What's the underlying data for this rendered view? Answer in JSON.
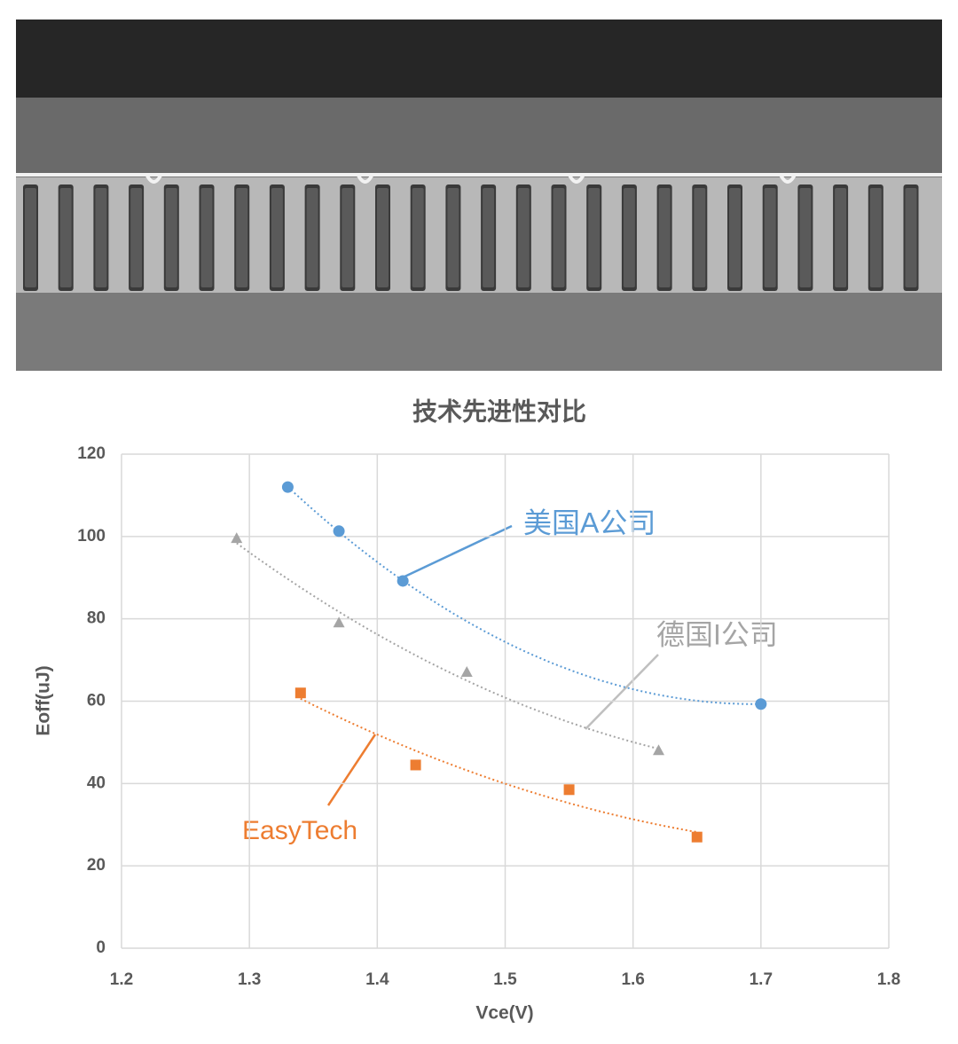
{
  "chart_data": {
    "type": "scatter",
    "title": "技术先进性对比",
    "x_label": "Vce(V)",
    "y_label": "Eoff(uJ)",
    "xlim": [
      1.2,
      1.8
    ],
    "xticks": [
      1.2,
      1.3,
      1.4,
      1.5,
      1.6,
      1.7,
      1.8
    ],
    "ylim": [
      0,
      120
    ],
    "yticks": [
      0,
      20,
      40,
      60,
      80,
      100,
      120
    ],
    "grid": true,
    "trendline": "polynomial",
    "series": [
      {
        "name": "美国A公司",
        "color": "#5b9bd5",
        "marker": "circle",
        "x": [
          1.33,
          1.37,
          1.42,
          1.7
        ],
        "values": [
          112,
          101.3,
          89.2,
          59.3
        ]
      },
      {
        "name": "德国I公司",
        "color": "#a5a5a5",
        "marker": "triangle",
        "x": [
          1.29,
          1.37,
          1.47,
          1.62
        ],
        "values": [
          99.5,
          79,
          67,
          48
        ]
      },
      {
        "name": "EasyTech",
        "color": "#ed7d31",
        "marker": "square",
        "x": [
          1.34,
          1.43,
          1.55,
          1.65
        ],
        "values": [
          62,
          44.5,
          38.5,
          27
        ]
      }
    ]
  }
}
